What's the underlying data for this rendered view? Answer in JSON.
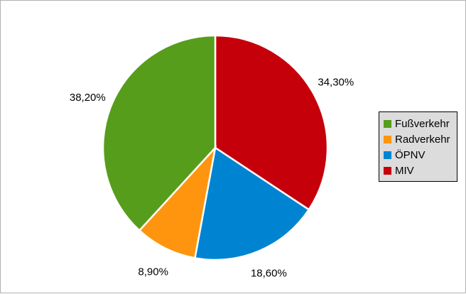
{
  "chart_data": {
    "type": "pie",
    "categories": [
      "MIV",
      "ÖPNV",
      "Radverkehr",
      "Fußverkehr"
    ],
    "values": [
      34.3,
      18.6,
      8.9,
      38.2
    ],
    "data_labels": [
      "34,30%",
      "18,60%",
      "8,90%",
      "38,20%"
    ],
    "colors": [
      "#c5000b",
      "#0084d1",
      "#ff950e",
      "#579d1c"
    ],
    "start": "12 o'clock, clockwise",
    "legend": {
      "placement": "right",
      "items": [
        {
          "label": "Fußverkehr",
          "color": "#579d1c"
        },
        {
          "label": "Radverkehr",
          "color": "#ff950e"
        },
        {
          "label": "ÖPNV",
          "color": "#0084d1"
        },
        {
          "label": "MIV",
          "color": "#c5000b"
        }
      ]
    }
  }
}
